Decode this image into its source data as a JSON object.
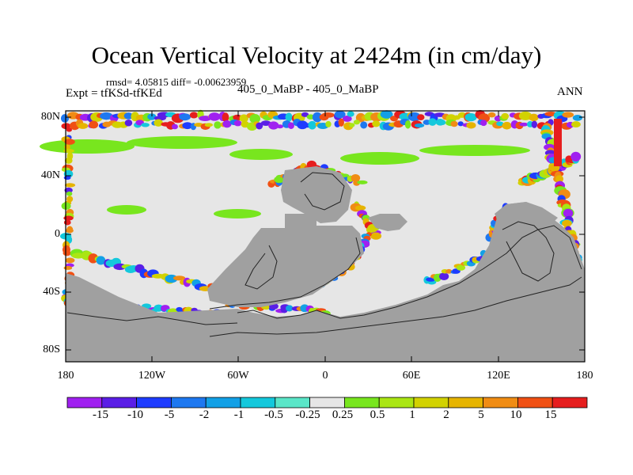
{
  "title": "Ocean Vertical Velocity at 2424m (in cm/day)",
  "stats": "rmsd= 4.05815 diff= -0.00623959",
  "experiment": "Expt = tfKSd-tfKEd",
  "subtitle": "405_0_MaBP - 405_0_MaBP",
  "season": "ANN",
  "y_axis_labels": [
    "80N",
    "40N",
    "0",
    "40S",
    "80S"
  ],
  "x_axis_labels": [
    "180",
    "120W",
    "60W",
    "0",
    "60E",
    "120E",
    "180"
  ],
  "colorbar": {
    "labels": [
      "-15",
      "-10",
      "-5",
      "-2",
      "-1",
      "-0.5",
      "-0.25",
      "0.25",
      "0.5",
      "1",
      "2",
      "5",
      "10",
      "15"
    ],
    "colors": [
      "#a020f0",
      "#5a1ee6",
      "#1e3cff",
      "#1e78f0",
      "#12a0e6",
      "#14c8dc",
      "#5ae6c8",
      "#e6e6e6",
      "#78e61e",
      "#aae614",
      "#d2d200",
      "#e6b400",
      "#f08c14",
      "#f05014",
      "#e61e1e"
    ]
  },
  "land_color": "#a0a0a0",
  "background_color": "#e6e6e6"
}
